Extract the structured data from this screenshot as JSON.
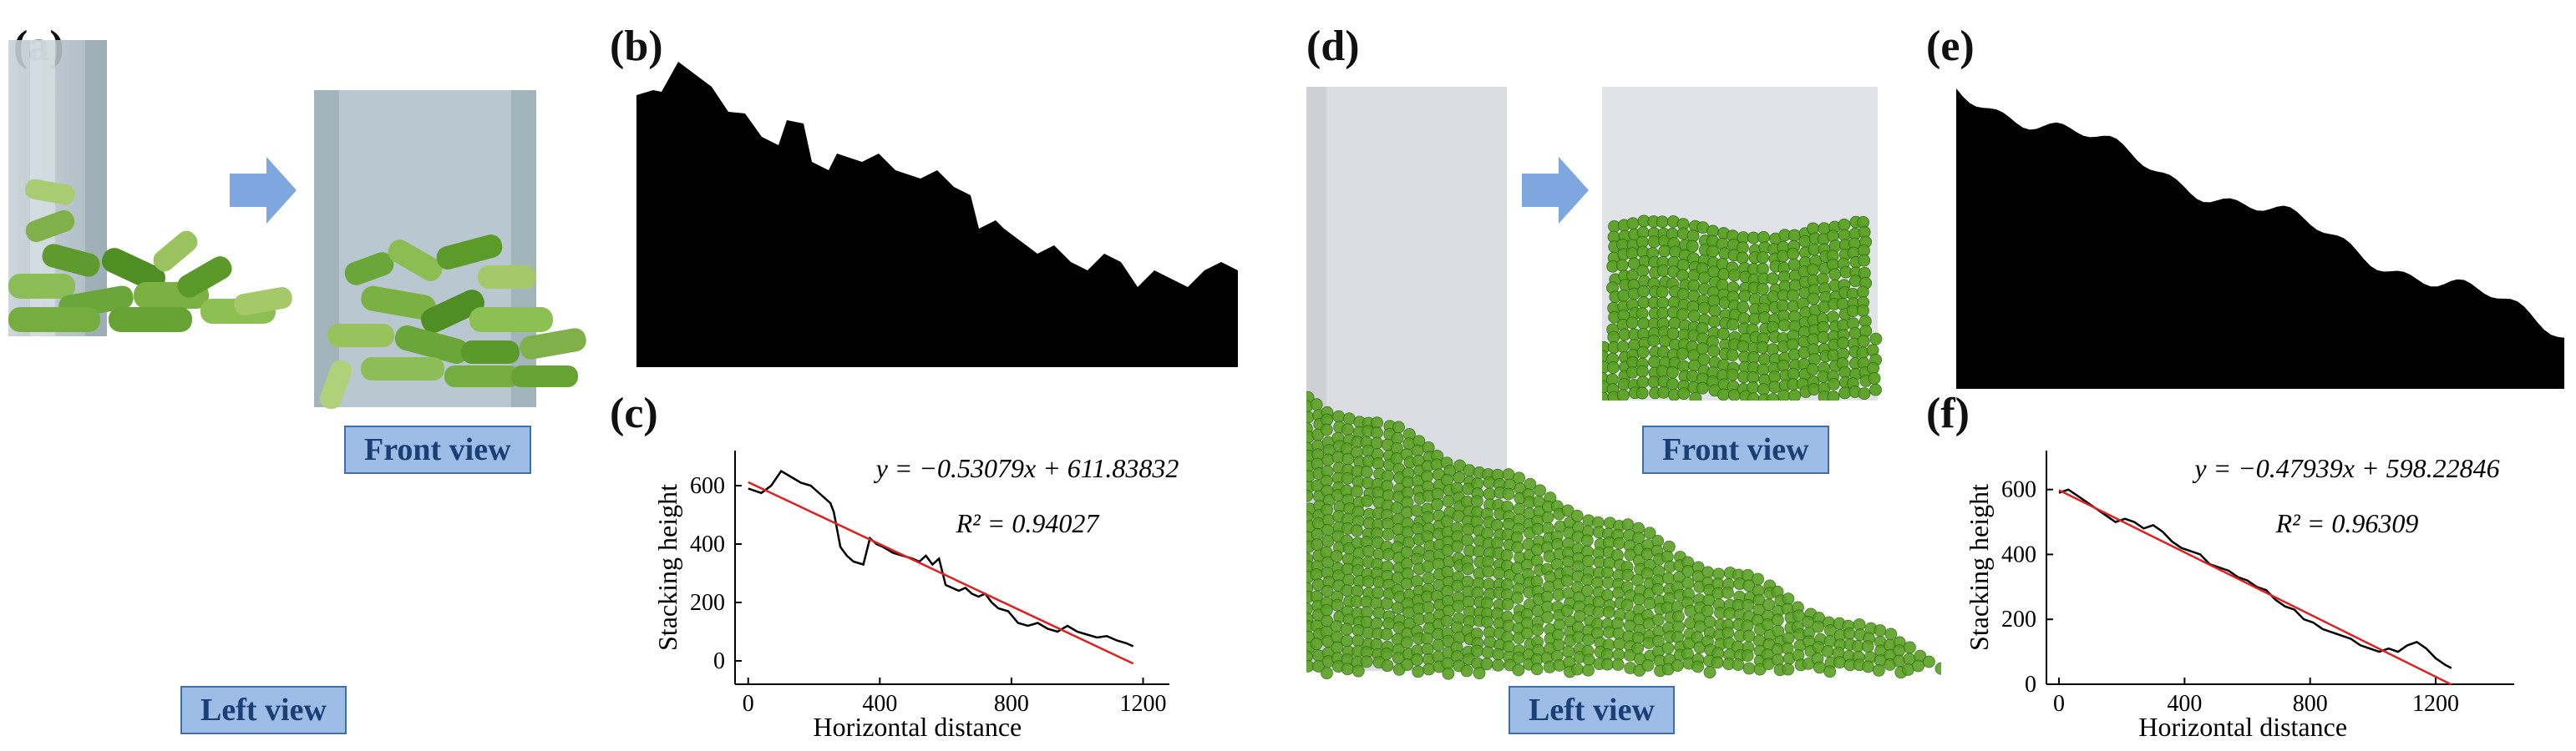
{
  "panels": {
    "a": "(a)",
    "b": "(b)",
    "c": "(c)",
    "d": "(d)",
    "e": "(e)",
    "f": "(f)"
  },
  "labels": {
    "front_view": "Front view",
    "left_view": "Left view"
  },
  "colors": {
    "stem_green": "#6aa63a",
    "sim_green": "#4f9a1c",
    "label_fill": "#9dbde6",
    "label_border": "#3e6fa8",
    "arrow": "#7ea7e0",
    "fit_line": "#e02020",
    "profile": "#000000"
  },
  "chart_data": [
    {
      "panel": "(c)",
      "type": "line",
      "xlabel": "Horizontal distance",
      "ylabel": "Stacking height",
      "xlim": [
        -40,
        1280
      ],
      "ylim": [
        -80,
        720
      ],
      "xticks": [
        0,
        400,
        800,
        1200
      ],
      "yticks": [
        0,
        200,
        400,
        600
      ],
      "equation": "y = −0.53079x + 611.83832",
      "r2": "R² = 0.94027",
      "fit": {
        "slope": -0.53079,
        "intercept": 611.83832,
        "x_range": [
          0,
          1170
        ]
      },
      "series": [
        {
          "x": [
            0,
            40,
            70,
            100,
            130,
            160,
            190,
            220,
            250,
            260,
            280,
            300,
            320,
            350,
            370,
            390,
            410,
            440,
            470,
            500,
            520,
            540,
            560,
            580,
            600,
            620,
            640,
            660,
            680,
            700,
            720,
            740,
            760,
            790,
            820,
            850,
            880,
            910,
            940,
            970,
            1000,
            1030,
            1060,
            1090,
            1120,
            1150,
            1170
          ],
          "y": [
            590,
            575,
            600,
            650,
            630,
            610,
            600,
            570,
            540,
            510,
            390,
            360,
            340,
            330,
            420,
            400,
            390,
            370,
            360,
            350,
            340,
            360,
            330,
            350,
            260,
            250,
            240,
            250,
            230,
            220,
            230,
            200,
            180,
            170,
            130,
            120,
            130,
            110,
            100,
            120,
            100,
            90,
            80,
            85,
            70,
            60,
            50
          ]
        }
      ]
    },
    {
      "panel": "(f)",
      "type": "line",
      "xlabel": "Horizontal distance",
      "ylabel": "Stacking height",
      "xlim": [
        -40,
        1450
      ],
      "ylim": [
        0,
        720
      ],
      "xticks": [
        0,
        400,
        800,
        1200
      ],
      "yticks": [
        0,
        200,
        400,
        600
      ],
      "equation": "y = −0.47939x + 598.22846",
      "r2": "R² = 0.96309",
      "fit": {
        "slope": -0.47939,
        "intercept": 598.22846,
        "x_range": [
          0,
          1250
        ]
      },
      "series": [
        {
          "x": [
            0,
            30,
            60,
            90,
            120,
            150,
            180,
            210,
            240,
            270,
            300,
            330,
            360,
            390,
            420,
            450,
            480,
            510,
            540,
            570,
            600,
            630,
            660,
            690,
            720,
            750,
            780,
            810,
            840,
            870,
            900,
            930,
            960,
            990,
            1020,
            1050,
            1080,
            1110,
            1140,
            1170,
            1200,
            1230,
            1250
          ],
          "y": [
            590,
            600,
            580,
            560,
            540,
            520,
            500,
            510,
            500,
            480,
            490,
            470,
            440,
            420,
            410,
            400,
            370,
            360,
            350,
            330,
            320,
            300,
            290,
            260,
            240,
            230,
            200,
            190,
            170,
            160,
            150,
            140,
            120,
            110,
            100,
            110,
            100,
            120,
            130,
            110,
            80,
            60,
            50
          ]
        }
      ]
    }
  ]
}
